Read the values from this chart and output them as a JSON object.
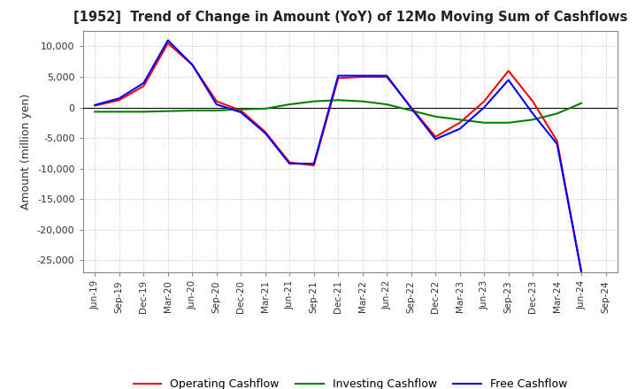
{
  "title": "[1952]  Trend of Change in Amount (YoY) of 12Mo Moving Sum of Cashflows",
  "ylabel": "Amount (million yen)",
  "background_color": "#ffffff",
  "plot_bg_color": "#ffffff",
  "grid_color": "#aaaaaa",
  "x_labels": [
    "Jun-19",
    "Sep-19",
    "Dec-19",
    "Mar-20",
    "Jun-20",
    "Sep-20",
    "Dec-20",
    "Mar-21",
    "Jun-21",
    "Sep-21",
    "Dec-21",
    "Mar-22",
    "Jun-22",
    "Sep-22",
    "Dec-22",
    "Mar-23",
    "Jun-23",
    "Sep-23",
    "Dec-23",
    "Mar-24",
    "Jun-24",
    "Sep-24"
  ],
  "operating_cashflow": [
    300,
    1200,
    3500,
    10500,
    7000,
    1000,
    -500,
    -4000,
    -9000,
    -9500,
    4800,
    5000,
    5000,
    0,
    -4800,
    -2500,
    1000,
    6000,
    1000,
    -5500,
    -27000,
    null
  ],
  "investing_cashflow": [
    -700,
    -700,
    -700,
    -600,
    -500,
    -500,
    -300,
    -200,
    500,
    1000,
    1200,
    1000,
    500,
    -500,
    -1500,
    -2000,
    -2500,
    -2500,
    -2000,
    -1000,
    700,
    null
  ],
  "free_cashflow": [
    400,
    1500,
    4000,
    11000,
    7000,
    500,
    -800,
    -4200,
    -9200,
    -9200,
    5200,
    5200,
    5200,
    -100,
    -5200,
    -3500,
    0,
    4500,
    -1000,
    -6000,
    -27000,
    null
  ],
  "ylim": [
    -27000,
    12500
  ],
  "yticks": [
    10000,
    5000,
    0,
    -5000,
    -10000,
    -15000,
    -20000,
    -25000
  ],
  "line_colors": {
    "operating": "#ff0000",
    "investing": "#008000",
    "free": "#0000ff"
  },
  "legend_labels": [
    "Operating Cashflow",
    "Investing Cashflow",
    "Free Cashflow"
  ]
}
